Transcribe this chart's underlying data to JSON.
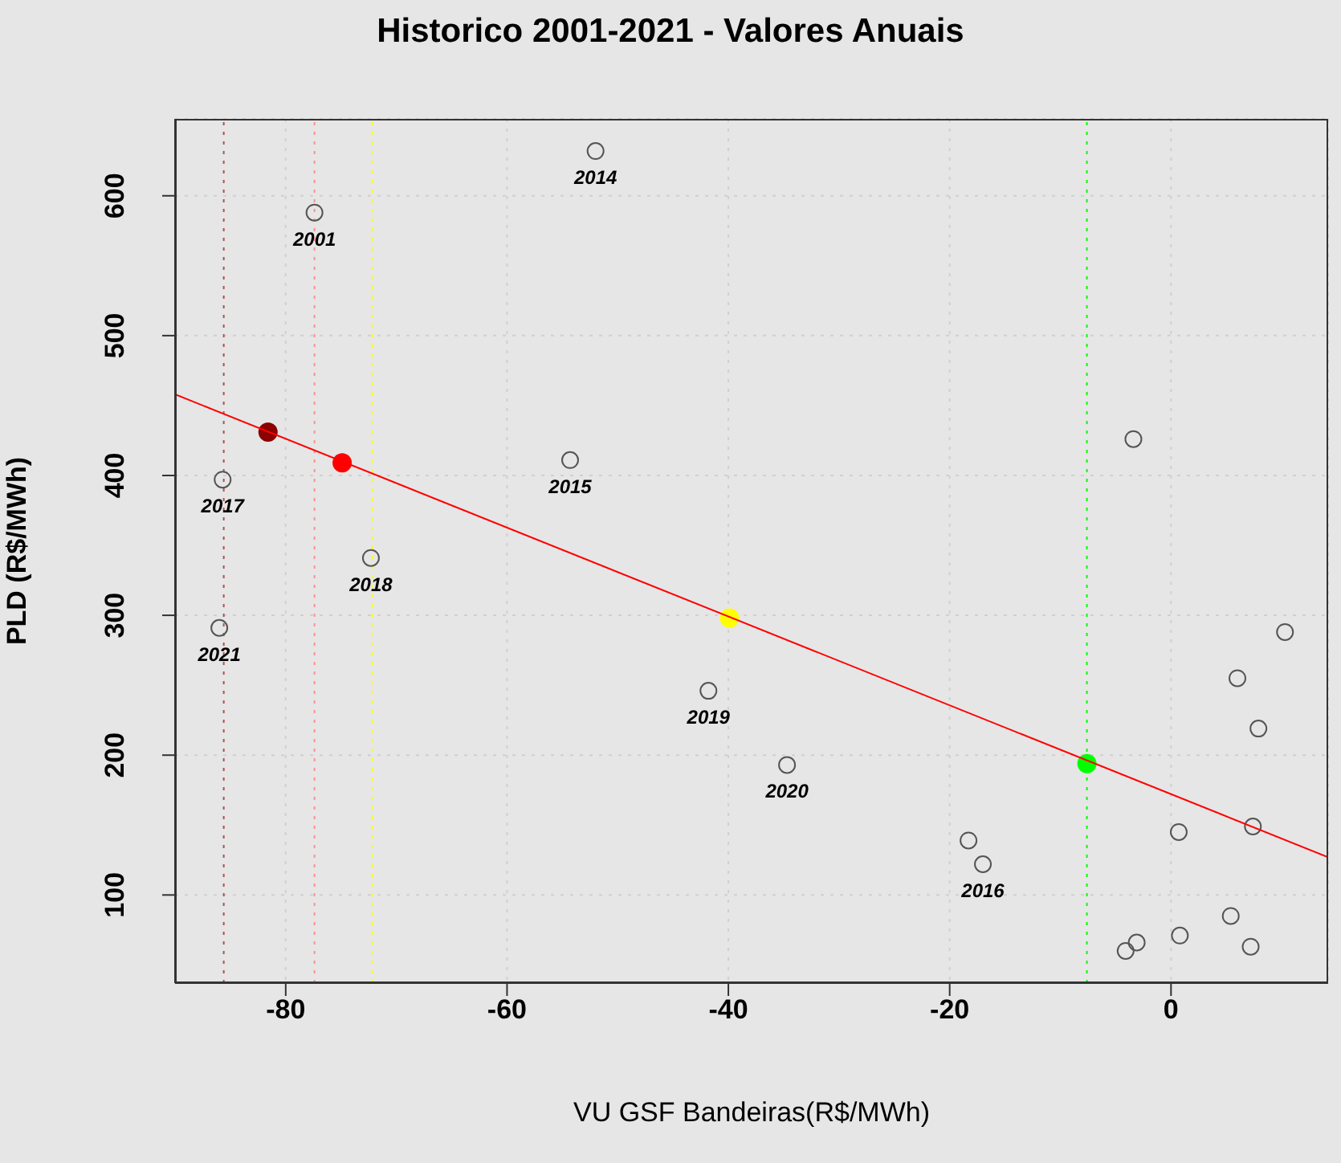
{
  "chart_data": {
    "type": "scatter",
    "title": "Historico 2001-2021 - Valores Anuais",
    "xlabel": "VU GSF Bandeiras(R$/MWh)",
    "ylabel": "PLD (R$/MWh)",
    "xlim": [
      -90,
      14.2
    ],
    "xticks": [
      -80,
      -60,
      -40,
      -20,
      0
    ],
    "ylim": [
      37,
      655
    ],
    "yticks": [
      100,
      200,
      300,
      400,
      500,
      600
    ],
    "grid": true,
    "marker": "circle",
    "series": [
      {
        "color": "#555555",
        "x": [
          -52.0,
          -77.4,
          -85.7,
          -54.3,
          -72.3,
          -86.0,
          -41.8,
          -34.7,
          -18.3,
          -17.0,
          -3.4,
          10.3,
          6.0,
          7.9,
          0.7,
          7.4,
          5.4,
          0.8,
          7.2,
          -3.1,
          -4.1
        ],
        "values": [
          632,
          588,
          397,
          411,
          341,
          291,
          246,
          193,
          139,
          122,
          426,
          288,
          255,
          219,
          145,
          149,
          85,
          71,
          63,
          66,
          60
        ]
      },
      {
        "colors": [
          "#8b0000",
          "#ff0000",
          "#ffff00",
          "#00ff00"
        ],
        "x": [
          -81.6,
          -74.9,
          -39.9,
          -7.6
        ],
        "values": [
          431,
          409,
          298,
          194
        ]
      },
      {
        "type": "line",
        "marker": "none",
        "color": "#ff0000",
        "x": [
          -90,
          14.2
        ],
        "values": [
          458,
          127
        ]
      }
    ],
    "ref_lines": [
      {
        "axis": "x",
        "value": -85.6,
        "color": "#b05050",
        "line_style": "dotted"
      },
      {
        "axis": "x",
        "value": -77.4,
        "color": "#ff9090",
        "line_style": "dotted"
      },
      {
        "axis": "x",
        "value": -72.2,
        "color": "#ffff00",
        "line_style": "dotted"
      },
      {
        "axis": "x",
        "value": -7.6,
        "color": "#00ff00",
        "line_style": "dotted"
      }
    ],
    "annotations": [
      {
        "text": "2014",
        "x": -52.0,
        "y": 632
      },
      {
        "text": "2001",
        "x": -77.4,
        "y": 588
      },
      {
        "text": "2017",
        "x": -85.7,
        "y": 397
      },
      {
        "text": "2015",
        "x": -54.3,
        "y": 411
      },
      {
        "text": "2018",
        "x": -72.3,
        "y": 341
      },
      {
        "text": "2021",
        "x": -86.0,
        "y": 291
      },
      {
        "text": "2019",
        "x": -41.8,
        "y": 246
      },
      {
        "text": "2020",
        "x": -34.7,
        "y": 193
      },
      {
        "text": "2016",
        "x": -17.0,
        "y": 122
      }
    ]
  }
}
